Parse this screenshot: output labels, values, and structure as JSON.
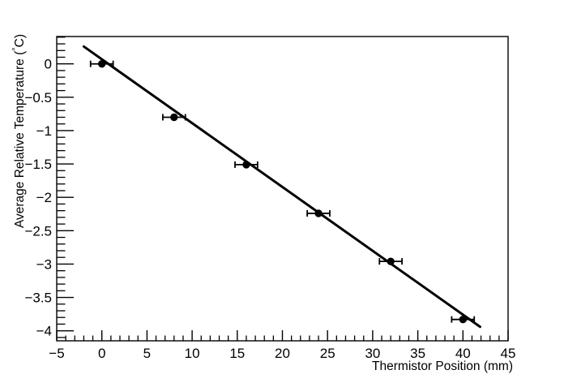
{
  "window": {
    "background_color": "#ffffff",
    "foreground_color": "#000000"
  },
  "chart_data": {
    "type": "scatter",
    "title": "",
    "xlabel": "Thermistor Position (mm)",
    "ylabel": "Average Relative Temperature (°C)",
    "xlim": [
      -5,
      45
    ],
    "ylim": [
      -4.15,
      0.41
    ],
    "grid": false,
    "legend": null,
    "x_axis": {
      "major_ticks": [
        -5,
        0,
        5,
        10,
        15,
        20,
        25,
        30,
        35,
        40,
        45
      ],
      "tick_labels": [
        "−5",
        "0",
        "5",
        "10",
        "15",
        "20",
        "25",
        "30",
        "35",
        "40",
        "45"
      ],
      "minor_step": 1
    },
    "y_axis": {
      "major_ticks": [
        0,
        -0.5,
        -1,
        -1.5,
        -2,
        -2.5,
        -3,
        -3.5,
        -4
      ],
      "tick_labels": [
        "0",
        "−0.5",
        "−1",
        "−1.5",
        "−2",
        "−2.5",
        "−3",
        "−3.5",
        "−4"
      ],
      "minor_step": 0.1
    },
    "series": [
      {
        "name": "measured-data",
        "type": "scatter",
        "marker": "filled-circle",
        "marker_color": "#000000",
        "error_bars": "x-only",
        "points": [
          {
            "x": 0,
            "y": 0.0,
            "xerr": 1.25
          },
          {
            "x": 8,
            "y": -0.8,
            "xerr": 1.25
          },
          {
            "x": 16,
            "y": -1.51,
            "xerr": 1.25
          },
          {
            "x": 24,
            "y": -2.24,
            "xerr": 1.25
          },
          {
            "x": 32,
            "y": -2.96,
            "xerr": 1.25
          },
          {
            "x": 40,
            "y": -3.83,
            "xerr": 1.25
          }
        ]
      },
      {
        "name": "linear-fit",
        "type": "line",
        "color": "#000000",
        "x1": -2.0,
        "y1": 0.26,
        "x2": 41.9,
        "y2": -3.94
      }
    ]
  }
}
